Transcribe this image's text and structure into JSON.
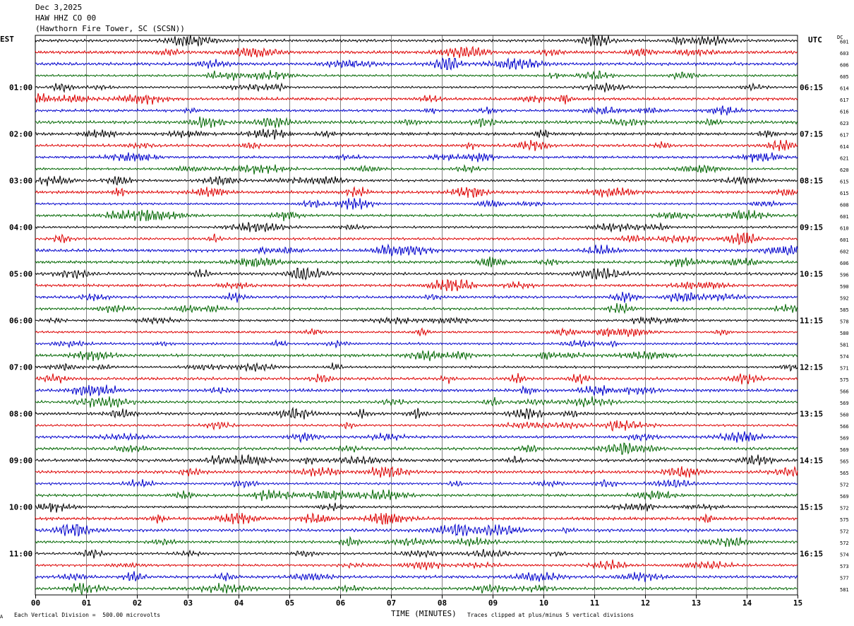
{
  "header": {
    "date": "Dec 3,2025",
    "station": "HAW HHZ CO 00",
    "location": "(Hawthorn Fire Tower, SC (SCSN))"
  },
  "labels": {
    "left_tz": "EST",
    "right_tz": "UTC",
    "dc": "DC"
  },
  "footer": {
    "scale": "Each Vertical Division =  500.00 microvolts",
    "xlabel": "TIME (MINUTES)",
    "clip": "Traces clipped at plus/minus 5 vertical divisions",
    "corner_mark": "A"
  },
  "chart_data": {
    "type": "line",
    "xlabel": "TIME (MINUTES)",
    "xlim": [
      0,
      15
    ],
    "x_ticks": [
      "00",
      "01",
      "02",
      "03",
      "04",
      "05",
      "06",
      "07",
      "08",
      "09",
      "10",
      "11",
      "12",
      "13",
      "14",
      "15"
    ],
    "grid": true,
    "trace_colors": [
      "#000000",
      "#dd0000",
      "#0000cc",
      "#006600"
    ],
    "left_hour_labels": [
      "01:00",
      "02:00",
      "03:00",
      "04:00",
      "05:00",
      "06:00",
      "07:00",
      "08:00",
      "09:00",
      "10:00",
      "11:00"
    ],
    "right_hour_labels": [
      "06:15",
      "07:15",
      "08:15",
      "09:15",
      "10:15",
      "11:15",
      "12:15",
      "13:15",
      "14:15",
      "15:15",
      "16:15"
    ],
    "dc_offsets": [
      "601",
      "603",
      "606",
      "605",
      "614",
      "617",
      "616",
      "623",
      "617",
      "614",
      "621",
      "620",
      "615",
      "615",
      "608",
      "601",
      "610",
      "601",
      "602",
      "606",
      "596",
      "590",
      "592",
      "585",
      "578",
      "580",
      "581",
      "574",
      "571",
      "575",
      "566",
      "569",
      "560",
      "566",
      "569",
      "569",
      "565",
      "565",
      "572",
      "569",
      "572",
      "575",
      "572",
      "572",
      "574",
      "573",
      "577",
      "581"
    ]
  }
}
